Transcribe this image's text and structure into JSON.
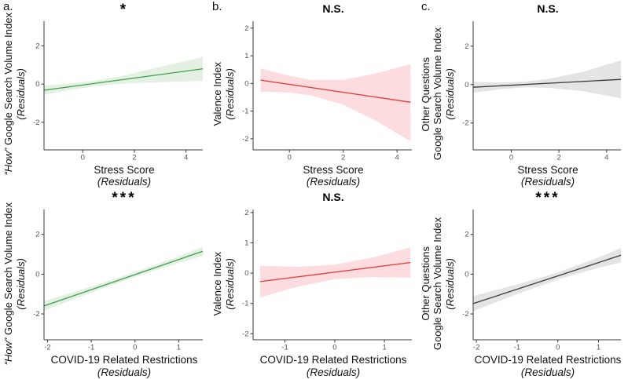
{
  "figure": {
    "letters": [
      "a.",
      "b.",
      "c."
    ]
  },
  "chart_data": [
    {
      "id": "a-top",
      "type": "line",
      "significance": "*",
      "line_color": "#3f9d4f",
      "band_color": "#e4f0e2",
      "xlabel_line1": "Stress Score",
      "xlabel_line2": "(Residuals)",
      "ylabel_lines": [
        [
          {
            "t": "“How”",
            "i": true
          },
          {
            "t": " Google Search Volume Index",
            "i": false
          }
        ],
        [
          {
            "t": "(Residuals)",
            "i": true
          }
        ]
      ],
      "xlim": [
        -1.5,
        4.65
      ],
      "ylim": [
        -3.45,
        3.3
      ],
      "xticks": [
        0,
        2,
        4
      ],
      "yticks": [
        -2,
        0,
        2
      ],
      "line": {
        "x": [
          -1.5,
          4.65
        ],
        "y": [
          -0.32,
          0.8
        ]
      },
      "band": {
        "x": [
          -1.5,
          -0.5,
          0.5,
          1.5,
          3.0,
          4.65
        ],
        "upper": [
          -0.08,
          0.03,
          0.18,
          0.42,
          0.9,
          1.43
        ],
        "lower": [
          -0.56,
          -0.31,
          -0.1,
          0.02,
          0.1,
          0.17
        ]
      }
    },
    {
      "id": "b-top",
      "type": "line",
      "significance": "N.S.",
      "line_color": "#e23a36",
      "band_color": "#fcdcdf",
      "xlabel_line1": "Stress Score",
      "xlabel_line2": "(Residuals)",
      "ylabel_lines": [
        [
          {
            "t": "Valence Index",
            "i": false
          }
        ],
        [
          {
            "t": "(Residuals)",
            "i": true
          }
        ]
      ],
      "xlim": [
        -1.35,
        4.55
      ],
      "ylim": [
        -2.4,
        2.25
      ],
      "xticks": [
        0,
        2,
        4
      ],
      "yticks": [
        -2,
        -1,
        0,
        1,
        2
      ],
      "line": {
        "x": [
          -1.07,
          4.5
        ],
        "y": [
          0.12,
          -0.68
        ]
      },
      "band": {
        "x": [
          -1.07,
          0,
          0.8,
          2,
          3.2,
          4.5
        ],
        "upper": [
          0.54,
          0.27,
          0.13,
          0.13,
          0.36,
          0.7
        ],
        "lower": [
          -0.3,
          -0.33,
          -0.43,
          -0.77,
          -1.34,
          -2.08
        ]
      }
    },
    {
      "id": "c-top",
      "type": "line",
      "significance": "N.S.",
      "line_color": "#3a3a3a",
      "band_color": "#e4e4e4",
      "xlabel_line1": "Stress Score",
      "xlabel_line2": "(Residuals)",
      "ylabel_lines": [
        [
          {
            "t": "Other Questions",
            "i": false
          }
        ],
        [
          {
            "t": "Google Search Volume Index",
            "i": false
          }
        ],
        [
          {
            "t": "(Residuals)",
            "i": true
          }
        ]
      ],
      "xlim": [
        -1.6,
        4.6
      ],
      "ylim": [
        -3.4,
        3.3
      ],
      "xticks": [
        0,
        2,
        4
      ],
      "yticks": [
        -2,
        0,
        2
      ],
      "line": {
        "x": [
          -1.6,
          4.6
        ],
        "y": [
          -0.14,
          0.27
        ]
      },
      "band": {
        "x": [
          -1.6,
          -0.5,
          0.5,
          1.5,
          3.0,
          4.6
        ],
        "upper": [
          0.14,
          0.11,
          0.15,
          0.28,
          0.66,
          1.26
        ],
        "lower": [
          -0.42,
          -0.25,
          -0.15,
          -0.16,
          -0.34,
          -0.72
        ]
      }
    },
    {
      "id": "a-bottom",
      "type": "line",
      "significance": "***",
      "line_color": "#3f9d4f",
      "band_color": "#e4f0e2",
      "xlabel_line1": "COVID-19 Related Restrictions",
      "xlabel_line2": "(Residuals)",
      "ylabel_lines": [
        [
          {
            "t": "“How”",
            "i": true
          },
          {
            "t": " Google Search Volume Index",
            "i": false
          }
        ],
        [
          {
            "t": "(Residuals)",
            "i": true
          }
        ]
      ],
      "xlim": [
        -2.08,
        1.55
      ],
      "ylim": [
        -3.3,
        3.25
      ],
      "xticks": [
        -2,
        -1,
        0,
        1
      ],
      "yticks": [
        -2,
        0,
        2
      ],
      "line": {
        "x": [
          -2.08,
          1.55
        ],
        "y": [
          -1.6,
          1.15
        ]
      },
      "band": {
        "x": [
          -2.08,
          -1,
          0,
          1,
          1.55
        ],
        "upper": [
          -1.36,
          -0.63,
          0.1,
          0.9,
          1.38
        ],
        "lower": [
          -1.84,
          -0.93,
          -0.14,
          0.56,
          0.92
        ]
      }
    },
    {
      "id": "b-bottom",
      "type": "line",
      "significance": "N.S.",
      "line_color": "#e23a36",
      "band_color": "#fcdcdf",
      "xlabel_line1": "COVID-19 Related Restrictions",
      "xlabel_line2": "(Residuals)",
      "ylabel_lines": [
        [
          {
            "t": "Valence Index",
            "i": false
          }
        ],
        [
          {
            "t": "(Residuals)",
            "i": true
          }
        ]
      ],
      "xlim": [
        -1.64,
        1.55
      ],
      "ylim": [
        -2.2,
        2.1
      ],
      "xticks": [
        -1,
        0,
        1
      ],
      "yticks": [
        -2,
        -1,
        0,
        1,
        2
      ],
      "line": {
        "x": [
          -1.5,
          1.52
        ],
        "y": [
          -0.28,
          0.35
        ]
      },
      "band": {
        "x": [
          -1.5,
          -0.75,
          0,
          0.75,
          1.52
        ],
        "upper": [
          0.24,
          0.21,
          0.28,
          0.51,
          0.85
        ],
        "lower": [
          -0.8,
          -0.45,
          -0.2,
          -0.13,
          -0.15
        ]
      }
    },
    {
      "id": "c-bottom",
      "type": "line",
      "significance": "***",
      "line_color": "#3a3a3a",
      "band_color": "#e4e4e4",
      "xlabel_line1": "COVID-19 Related Restrictions",
      "xlabel_line2": "(Residuals)",
      "ylabel_lines": [
        [
          {
            "t": "Other Questions",
            "i": false
          }
        ],
        [
          {
            "t": "Google Search Volume Index",
            "i": false
          }
        ],
        [
          {
            "t": "(Residuals)",
            "i": true
          }
        ]
      ],
      "xlim": [
        -2.08,
        1.55
      ],
      "ylim": [
        -3.3,
        3.25
      ],
      "xticks": [
        -2,
        -1,
        0,
        1
      ],
      "yticks": [
        -2,
        0,
        2
      ],
      "line": {
        "x": [
          -2.08,
          1.55
        ],
        "y": [
          -1.48,
          0.95
        ]
      },
      "band": {
        "x": [
          -2.08,
          -1,
          0,
          1,
          1.55
        ],
        "upper": [
          -1.1,
          -0.52,
          0.09,
          0.84,
          1.31
        ],
        "lower": [
          -1.86,
          -1.0,
          -0.27,
          0.32,
          0.59
        ]
      }
    }
  ]
}
